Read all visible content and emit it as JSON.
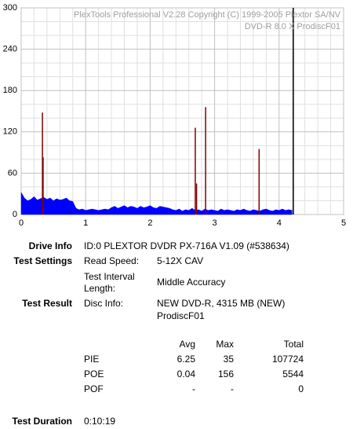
{
  "chart_data": {
    "type": "area",
    "watermark": [
      "PlexTools Professional V2.28 Copyright (C) 1999-2005 Plextor SA/NV",
      "DVD-R   8.0 X   ProdiscF01"
    ],
    "xlim": [
      0,
      5
    ],
    "xticks": [
      0,
      1,
      2,
      3,
      4,
      5
    ],
    "ylim": [
      0,
      300
    ],
    "yticks": [
      0,
      60,
      120,
      180,
      240,
      300
    ],
    "grid": true,
    "minor_grid": true,
    "series": [
      {
        "name": "PIE",
        "color": "#0000ff",
        "x": [
          0,
          0.05,
          0.1,
          0.15,
          0.2,
          0.25,
          0.3,
          0.35,
          0.4,
          0.45,
          0.5,
          0.55,
          0.6,
          0.65,
          0.7,
          0.75,
          0.8,
          0.85,
          0.9,
          0.95,
          1,
          1.05,
          1.1,
          1.15,
          1.2,
          1.25,
          1.3,
          1.35,
          1.4,
          1.45,
          1.5,
          1.55,
          1.6,
          1.65,
          1.7,
          1.75,
          1.8,
          1.85,
          1.9,
          1.95,
          2,
          2.05,
          2.1,
          2.15,
          2.2,
          2.25,
          2.3,
          2.35,
          2.4,
          2.45,
          2.5,
          2.55,
          2.6,
          2.65,
          2.7,
          2.75,
          2.8,
          2.85,
          2.9,
          2.95,
          3,
          3.05,
          3.1,
          3.15,
          3.2,
          3.25,
          3.3,
          3.35,
          3.4,
          3.45,
          3.5,
          3.55,
          3.6,
          3.65,
          3.7,
          3.75,
          3.8,
          3.85,
          3.9,
          3.95,
          4,
          4.05,
          4.1,
          4.15,
          4.2
        ],
        "values": [
          32,
          24,
          20,
          22,
          26,
          21,
          23,
          25,
          22,
          24,
          20,
          23,
          21,
          22,
          24,
          20,
          19,
          9,
          7,
          8,
          6,
          7,
          8,
          7,
          6,
          7,
          8,
          7,
          10,
          12,
          9,
          11,
          13,
          10,
          12,
          11,
          9,
          12,
          10,
          11,
          13,
          10,
          9,
          12,
          11,
          10,
          9,
          7,
          6,
          8,
          5,
          7,
          6,
          9,
          6,
          7,
          5,
          8,
          6,
          7,
          6,
          5,
          8,
          6,
          7,
          6,
          5,
          7,
          6,
          8,
          6,
          5,
          7,
          6,
          5,
          7,
          8,
          6,
          5,
          7,
          6,
          8,
          6,
          7,
          6
        ]
      },
      {
        "name": "POE",
        "color": "#800000",
        "x": [
          0.33,
          0.34,
          2.7,
          2.72,
          2.86,
          3.69
        ],
        "values": [
          148,
          83,
          126,
          45,
          156,
          95
        ]
      }
    ],
    "disc_end": 4.22
  },
  "info": {
    "drive_info": {
      "label": "Drive Info",
      "value": "ID:0 PLEXTOR DVDR PX-716A V1.09 (#538634)"
    },
    "test_settings": {
      "label": "Test Settings",
      "rows": [
        [
          "Read Speed:",
          "5-12X CAV"
        ],
        [
          "Test Interval Length:",
          "Middle Accuracy"
        ]
      ]
    },
    "test_result": {
      "label": "Test Result",
      "disc_info_label": "Disc Info:",
      "disc_info": [
        "NEW DVD-R, 4315 MB (NEW)",
        "ProdiscF01"
      ]
    },
    "table": {
      "header": [
        "Avg",
        "Max",
        "Total"
      ],
      "rows": [
        [
          "PIE",
          6.25,
          35,
          107724
        ],
        [
          "POE",
          0.04,
          156,
          5544
        ],
        [
          "POF",
          "-",
          "-",
          0
        ]
      ]
    },
    "test_duration": {
      "label": "Test Duration",
      "value": "0:10:19"
    }
  }
}
